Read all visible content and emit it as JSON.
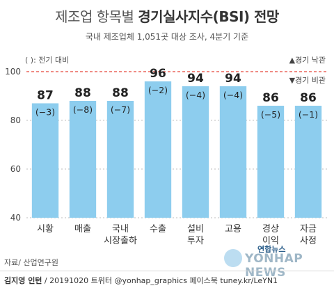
{
  "header": {
    "title_light": "제조업 항목별 ",
    "title_bold": "경기실사지수(BSI) 전망",
    "subtitle": "국내 제조업체 1,051곳 대상 조사, 4분기 기준"
  },
  "legend": {
    "paren_note": "( ): 전기 대비",
    "up_note": "▲경기 낙관",
    "down_note": "▼경기 비관"
  },
  "colors": {
    "bar": "#8dcdee",
    "reference_line": "#e8483b",
    "grid": "#bcbcbc"
  },
  "chart_data": {
    "type": "bar",
    "categories": [
      "시황",
      "매출",
      "국내\n시장출하",
      "수출",
      "설비\n투자",
      "고용",
      "경상\n이익",
      "자금\n사정"
    ],
    "values": [
      87,
      88,
      88,
      96,
      94,
      94,
      86,
      86
    ],
    "changes": [
      "(−3)",
      "(−8)",
      "(−7)",
      "(−2)",
      "(−4)",
      "(−4)",
      "(−5)",
      "(−1)"
    ],
    "ylim": [
      40,
      100
    ],
    "yticks": [
      40,
      60,
      80,
      100
    ],
    "reference_line": 100,
    "grid": true
  },
  "footer": {
    "source": "자료/ 산업연구원",
    "credit_name": "김지영 인턴",
    "credit_rest": " / 20191020  트위터 @yonhap_graphics  페이스북 tuney.kr/LeYN1",
    "logo_badge": "연합뉴스",
    "logo_text": "YONHAP NEWS"
  }
}
